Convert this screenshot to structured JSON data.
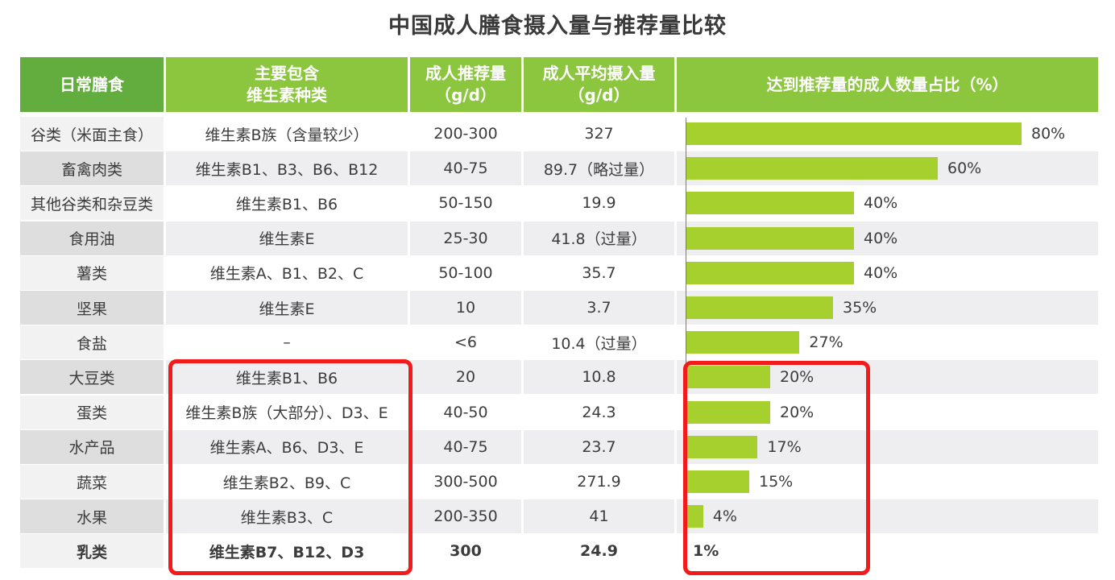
{
  "title": "中国成人膳食摄入量与推荐量比较",
  "header": {
    "col1": "日常膳食",
    "col2_line1": "主要包含",
    "col2_line2": "维生素种类",
    "col3_line1": "成人推荐量",
    "col3_line2": "（g/d）",
    "col4_line1": "成人平均摄入量",
    "col4_line2": "（g/d）",
    "col5": "达到推荐量的成人数量占比（%）"
  },
  "colors": {
    "header_first": "#62ad3e",
    "header": "#8cc63f",
    "bar": "#a6d02e",
    "highlight": "#f21a1a"
  },
  "rows": [
    {
      "food": "谷类（米面主食）",
      "vitamins": "维生素B族（含量较少）",
      "recommended": "200-300",
      "intake": "327",
      "pct_label": "80%"
    },
    {
      "food": "畜禽肉类",
      "vitamins": "维生素B1、B3、B6、B12",
      "recommended": "40-75",
      "intake": "89.7（略过量）",
      "pct_label": "60%"
    },
    {
      "food": "其他谷类和杂豆类",
      "vitamins": "维生素B1、B6",
      "recommended": "50-150",
      "intake": "19.9",
      "pct_label": "40%"
    },
    {
      "food": "食用油",
      "vitamins": "维生素E",
      "recommended": "25-30",
      "intake": "41.8（过量）",
      "pct_label": "40%"
    },
    {
      "food": "薯类",
      "vitamins": "维生素A、B1、B2、C",
      "recommended": "50-100",
      "intake": "35.7",
      "pct_label": "40%"
    },
    {
      "food": "坚果",
      "vitamins": "维生素E",
      "recommended": "10",
      "intake": "3.7",
      "pct_label": "35%"
    },
    {
      "food": "食盐",
      "vitamins": "–",
      "recommended": "<6",
      "intake": "10.4（过量）",
      "pct_label": "27%"
    },
    {
      "food": "大豆类",
      "vitamins": "维生素B1、B6",
      "recommended": "20",
      "intake": "10.8",
      "pct_label": "20%"
    },
    {
      "food": "蛋类",
      "vitamins": "维生素B族（大部分）、D3、E",
      "recommended": "40-50",
      "intake": "24.3",
      "pct_label": "20%"
    },
    {
      "food": "水产品",
      "vitamins": "维生素A、B6、D3、E",
      "recommended": "40-75",
      "intake": "23.7",
      "pct_label": "17%"
    },
    {
      "food": "蔬菜",
      "vitamins": "维生素B2、B9、C",
      "recommended": "300-500",
      "intake": "271.9",
      "pct_label": "15%"
    },
    {
      "food": "水果",
      "vitamins": "维生素B3、C",
      "recommended": "200-350",
      "intake": "41",
      "pct_label": "4%"
    },
    {
      "food": "乳类",
      "vitamins": "维生素B7、B12、D3",
      "recommended": "300",
      "intake": "24.9",
      "pct_label": "1%"
    }
  ],
  "chart_data": {
    "type": "bar",
    "orientation": "horizontal",
    "title": "中国成人膳食摄入量与推荐量比较",
    "xlabel": "达到推荐量的成人数量占比（%）",
    "ylabel": "日常膳食",
    "categories": [
      "谷类（米面主食）",
      "畜禽肉类",
      "其他谷类和杂豆类",
      "食用油",
      "薯类",
      "坚果",
      "食盐",
      "大豆类",
      "蛋类",
      "水产品",
      "蔬菜",
      "水果",
      "乳类"
    ],
    "values": [
      80,
      60,
      40,
      40,
      40,
      35,
      27,
      20,
      20,
      17,
      15,
      4,
      1
    ],
    "data_labels": [
      "80%",
      "60%",
      "40%",
      "40%",
      "40%",
      "35%",
      "27%",
      "20%",
      "20%",
      "17%",
      "15%",
      "4%",
      "1%"
    ],
    "xlim": [
      0,
      100
    ],
    "grid": false,
    "legend": null,
    "table_columns": [
      "日常膳食",
      "主要包含维生素种类",
      "成人推荐量（g/d）",
      "成人平均摄入量（g/d）",
      "达到推荐量的成人数量占比（%）"
    ],
    "recommended_g_per_day": [
      "200-300",
      "40-75",
      "50-150",
      "25-30",
      "50-100",
      "10",
      "<6",
      "20",
      "40-50",
      "40-75",
      "300-500",
      "200-350",
      "300"
    ],
    "average_intake_g_per_day": [
      "327",
      "89.7（略过量）",
      "19.9",
      "41.8（过量）",
      "35.7",
      "3.7",
      "10.4（过量）",
      "10.8",
      "24.3",
      "23.7",
      "271.9",
      "41",
      "24.9"
    ],
    "annotations": [
      "Red boxes highlight vitamin types and percentages for rows 大豆类 through 乳类"
    ]
  }
}
